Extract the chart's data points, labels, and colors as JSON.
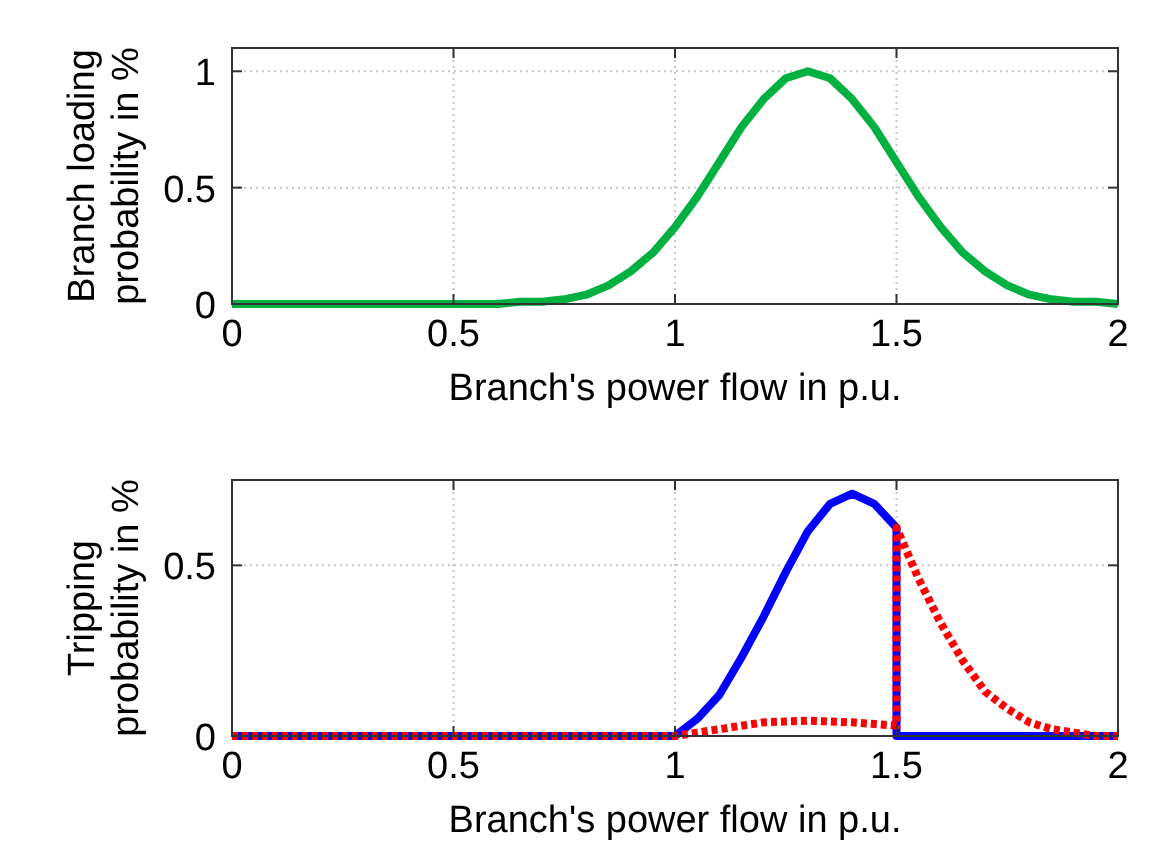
{
  "chart_data": [
    {
      "type": "line",
      "xlabel": "Branch's power flow in p.u.",
      "ylabel": "Branch loading\nprobability in %",
      "xlim": [
        0,
        2
      ],
      "xticks": [
        0,
        0.5,
        1,
        1.5,
        2
      ],
      "ylim": [
        0,
        1.1
      ],
      "yticks": [
        0,
        0.5,
        1
      ],
      "grid": true,
      "line_style": "solid",
      "x": [
        0,
        0.3,
        0.6,
        0.65,
        0.7,
        0.75,
        0.8,
        0.85,
        0.9,
        0.95,
        1,
        1.05,
        1.1,
        1.15,
        1.2,
        1.25,
        1.3,
        1.35,
        1.4,
        1.45,
        1.5,
        1.55,
        1.6,
        1.65,
        1.7,
        1.75,
        1.8,
        1.85,
        1.9,
        1.95,
        2
      ],
      "series": [
        {
          "color": "#00b040",
          "values": [
            0,
            0,
            0,
            0.01,
            0.01,
            0.02,
            0.04,
            0.08,
            0.14,
            0.22,
            0.33,
            0.46,
            0.61,
            0.76,
            0.88,
            0.97,
            1,
            0.97,
            0.88,
            0.76,
            0.61,
            0.46,
            0.33,
            0.22,
            0.14,
            0.08,
            0.04,
            0.02,
            0.01,
            0.01,
            0
          ]
        }
      ]
    },
    {
      "type": "line",
      "xlabel": "Branch's power flow in p.u.",
      "ylabel": "Tripping\nprobability in %",
      "xlim": [
        0,
        2
      ],
      "xticks": [
        0,
        0.5,
        1,
        1.5,
        2
      ],
      "ylim": [
        0,
        0.75
      ],
      "yticks": [
        0,
        0.5
      ],
      "grid": true,
      "series": [
        {
          "color": "#0000ff",
          "line_style": "solid",
          "x": [
            0,
            1,
            1.05,
            1.1,
            1.15,
            1.2,
            1.25,
            1.3,
            1.35,
            1.4,
            1.45,
            1.5,
            1.5,
            2
          ],
          "values": [
            0,
            0,
            0.05,
            0.12,
            0.23,
            0.35,
            0.48,
            0.6,
            0.68,
            0.71,
            0.68,
            0.61,
            0,
            0
          ]
        },
        {
          "color": "#ff0000",
          "line_style": "dotted",
          "x": [
            0,
            1,
            1.05,
            1.1,
            1.15,
            1.2,
            1.3,
            1.4,
            1.45,
            1.5,
            1.5,
            1.55,
            1.6,
            1.65,
            1.7,
            1.75,
            1.8,
            1.85,
            1.9,
            1.95,
            2
          ],
          "values": [
            0,
            0,
            0.01,
            0.02,
            0.03,
            0.04,
            0.045,
            0.04,
            0.035,
            0.03,
            0.61,
            0.46,
            0.33,
            0.22,
            0.13,
            0.08,
            0.04,
            0.02,
            0.01,
            0,
            0
          ]
        }
      ]
    }
  ]
}
